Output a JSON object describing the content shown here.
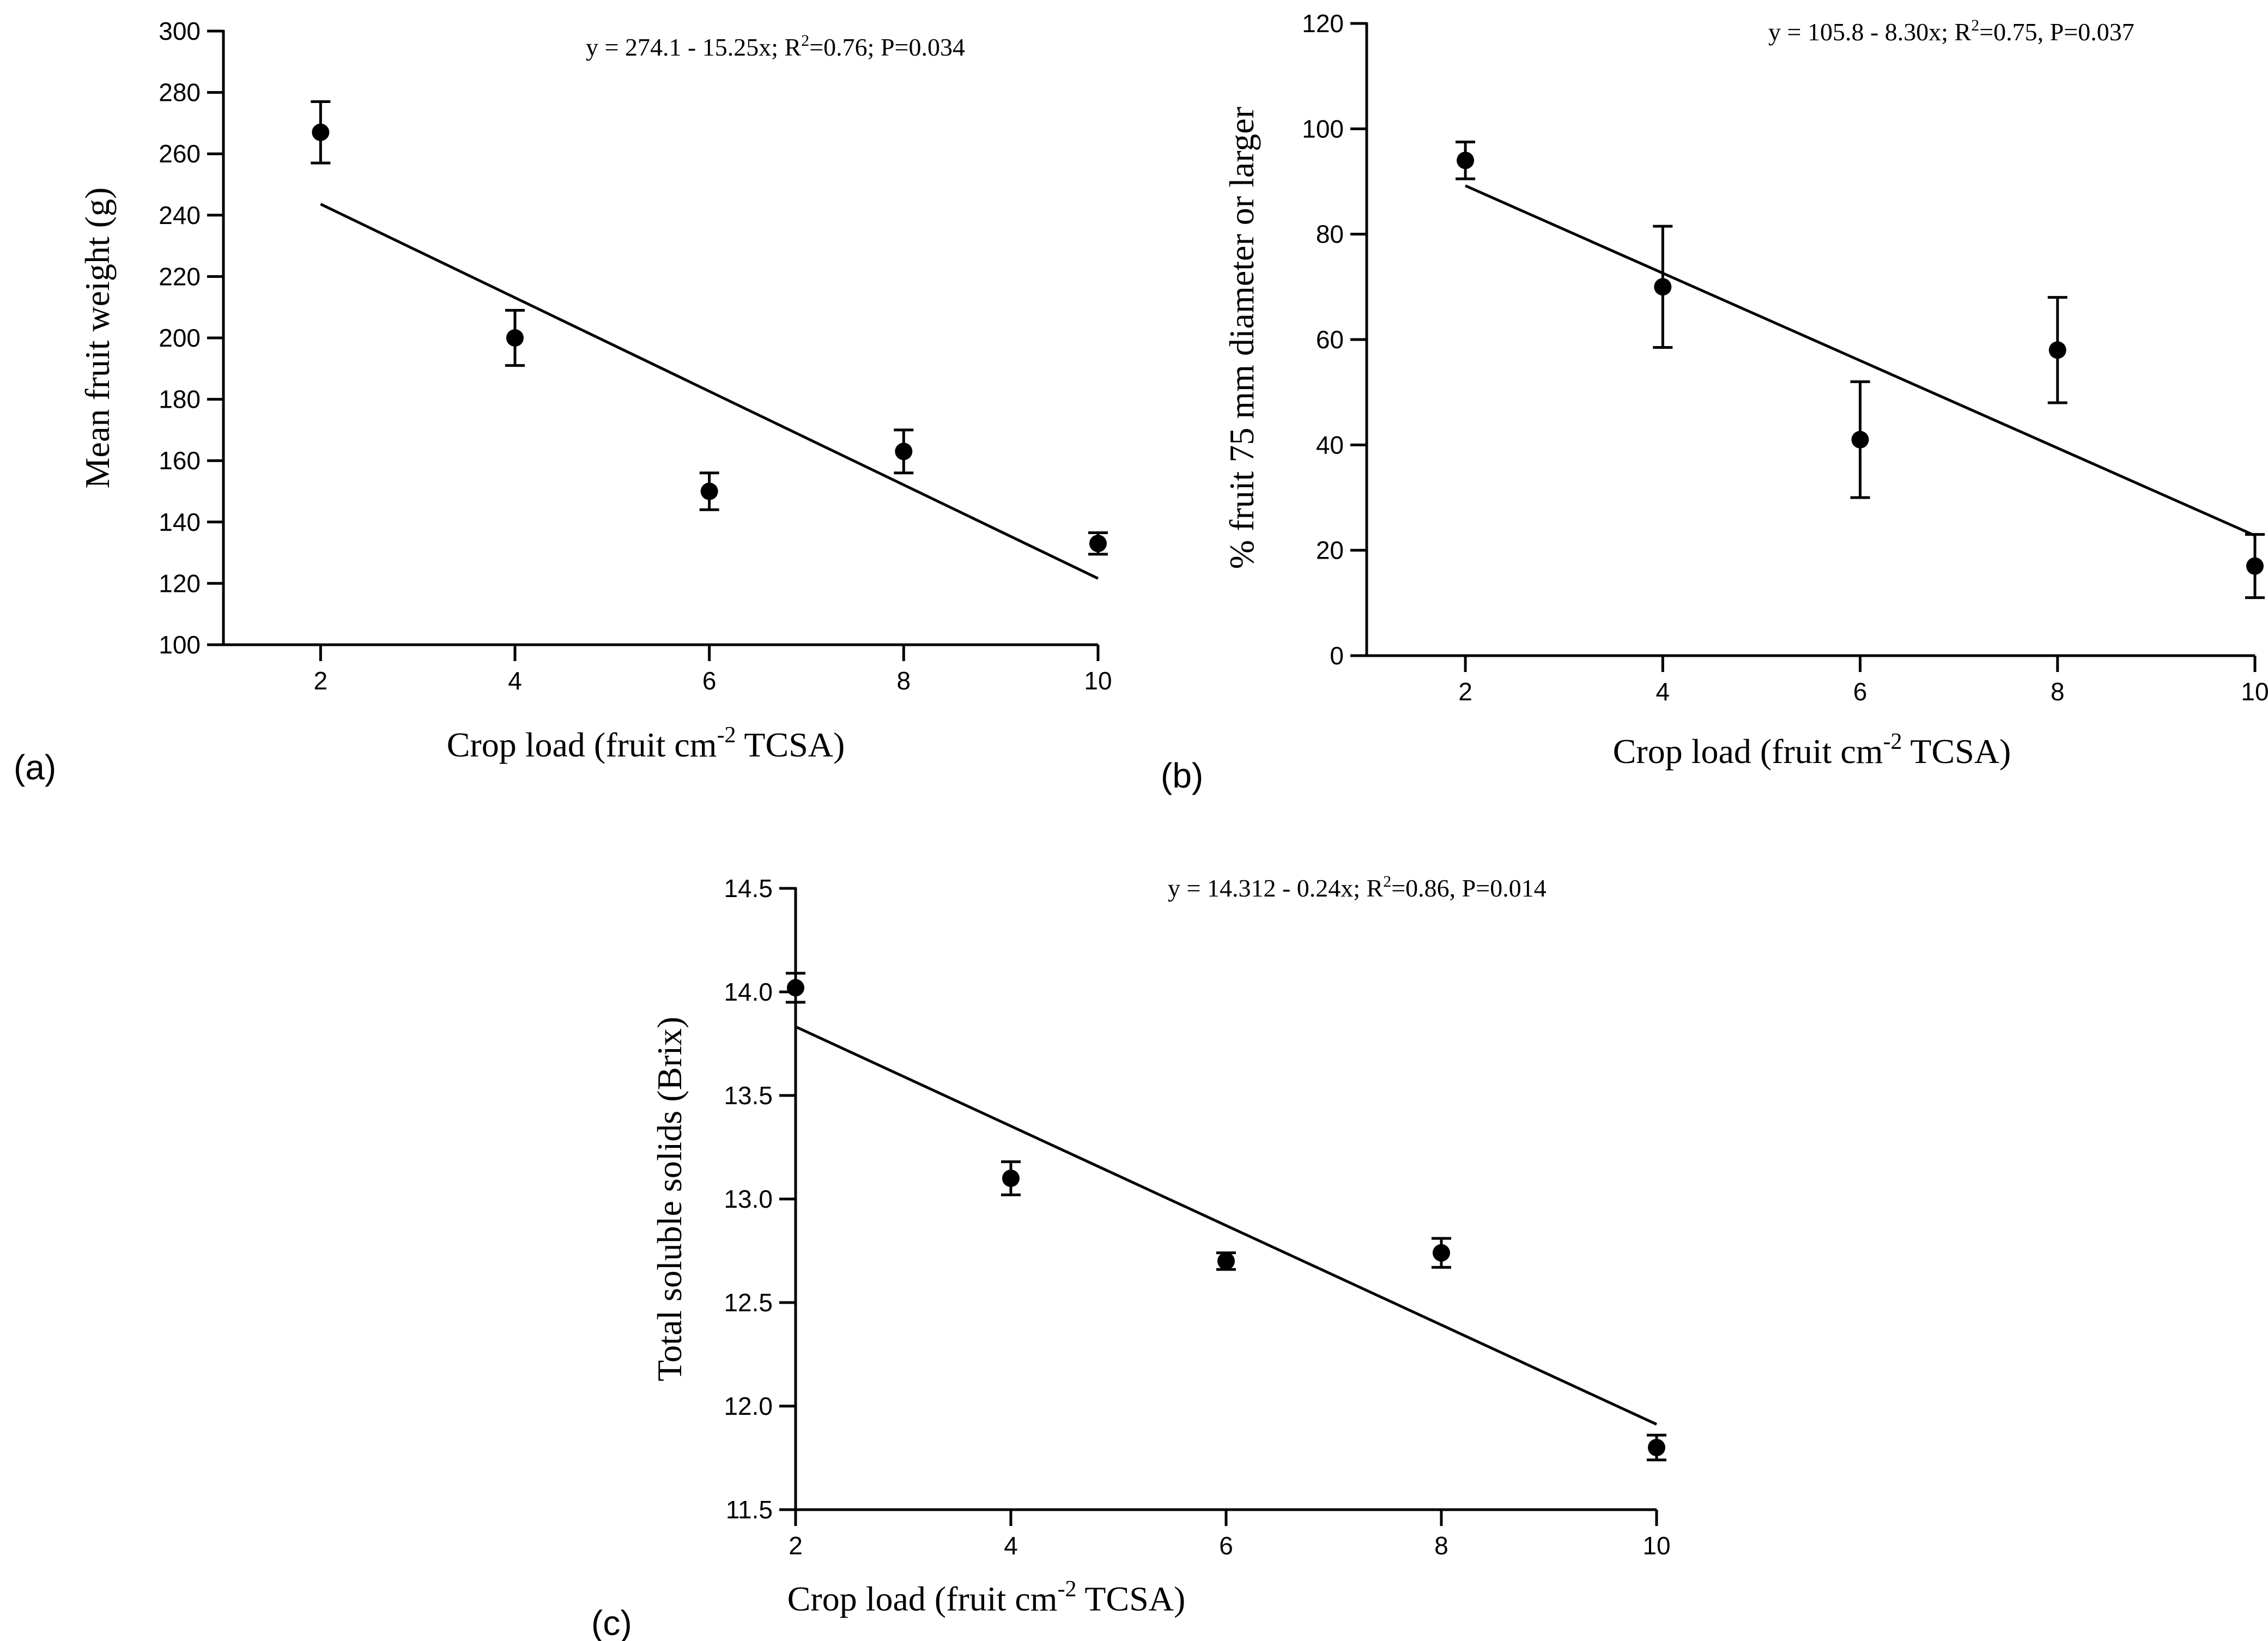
{
  "chart_data": [
    {
      "type": "scatter",
      "panel_label": "(a)",
      "equation": "y = 274.1 - 15.25x; R2=0.76; P=0.034",
      "eq_text_1": "y = 274.1 - 15.25x; R",
      "eq_sup": "2",
      "eq_text_2": "=0.76; P=0.034",
      "ylabel": "Mean fruit weight (g)",
      "xlabel_1": "Crop load (fruit cm",
      "xlabel_sup": "-2",
      "xlabel_2": " TCSA)",
      "xlim": [
        1,
        10
      ],
      "ylim": [
        100,
        300
      ],
      "x_ticks": [
        2,
        4,
        6,
        8,
        10
      ],
      "x_tick_labels": [
        "2",
        "4",
        "6",
        "8",
        "10"
      ],
      "y_ticks": [
        100,
        120,
        140,
        160,
        180,
        200,
        220,
        240,
        260,
        280,
        300
      ],
      "y_tick_labels": [
        "100",
        "120",
        "140",
        "160",
        "180",
        "200",
        "220",
        "240",
        "260",
        "280",
        "300"
      ],
      "x": [
        2,
        4,
        6,
        8,
        10
      ],
      "y": [
        267,
        200,
        150,
        163,
        133
      ],
      "error": [
        10,
        9,
        6,
        7,
        3.5
      ],
      "fit": {
        "intercept": 274.1,
        "slope": -15.25,
        "x_range": [
          2,
          10
        ]
      }
    },
    {
      "type": "scatter",
      "panel_label": "(b)",
      "equation": "y = 105.8 - 8.30x; R2=0.75, P=0.037",
      "eq_text_1": "y = 105.8 - 8.30x; R",
      "eq_sup": "2",
      "eq_text_2": "=0.75, P=0.037",
      "ylabel": "% fruit 75 mm diameter or larger",
      "xlabel_1": "Crop load (fruit cm",
      "xlabel_sup": "-2",
      "xlabel_2": " TCSA)",
      "xlim": [
        1,
        10
      ],
      "ylim": [
        0,
        120
      ],
      "x_ticks": [
        2,
        4,
        6,
        8,
        10
      ],
      "x_tick_labels": [
        "2",
        "4",
        "6",
        "8",
        "10"
      ],
      "y_ticks": [
        0,
        20,
        40,
        60,
        80,
        100,
        120
      ],
      "y_tick_labels": [
        "0",
        "20",
        "40",
        "60",
        "80",
        "100",
        "120"
      ],
      "x": [
        2,
        4,
        6,
        8,
        10
      ],
      "y": [
        94,
        70,
        41,
        58,
        17
      ],
      "error": [
        3.5,
        11.5,
        11,
        10,
        6
      ],
      "fit": {
        "intercept": 105.8,
        "slope": -8.3,
        "x_range": [
          2,
          10
        ]
      }
    },
    {
      "type": "scatter",
      "panel_label": "(c)",
      "equation": "y = 14.312 - 0.24x; R2=0.86, P=0.014",
      "eq_text_1": "y = 14.312 - 0.24x; R",
      "eq_sup": "2",
      "eq_text_2": "=0.86, P=0.014",
      "ylabel": "Total soluble solids (Brix)",
      "xlabel_1": "Crop load (fruit cm",
      "xlabel_sup": "-2",
      "xlabel_2": " TCSA)",
      "xlim": [
        2,
        10
      ],
      "ylim": [
        11.5,
        14.5
      ],
      "x_ticks": [
        2,
        4,
        6,
        8,
        10
      ],
      "x_tick_labels": [
        "2",
        "4",
        "6",
        "8",
        "10"
      ],
      "y_ticks": [
        11.5,
        12.0,
        12.5,
        13.0,
        13.5,
        14.0,
        14.5
      ],
      "y_tick_labels": [
        "11.5",
        "12.0",
        "12.5",
        "13.0",
        "13.5",
        "14.0",
        "14.5"
      ],
      "x": [
        2,
        4,
        6,
        8,
        10
      ],
      "y": [
        14.02,
        13.1,
        12.7,
        12.74,
        11.8
      ],
      "error": [
        0.07,
        0.08,
        0.04,
        0.07,
        0.06
      ],
      "fit": {
        "intercept": 14.312,
        "slope": -0.24,
        "x_range": [
          2,
          10
        ]
      }
    }
  ]
}
